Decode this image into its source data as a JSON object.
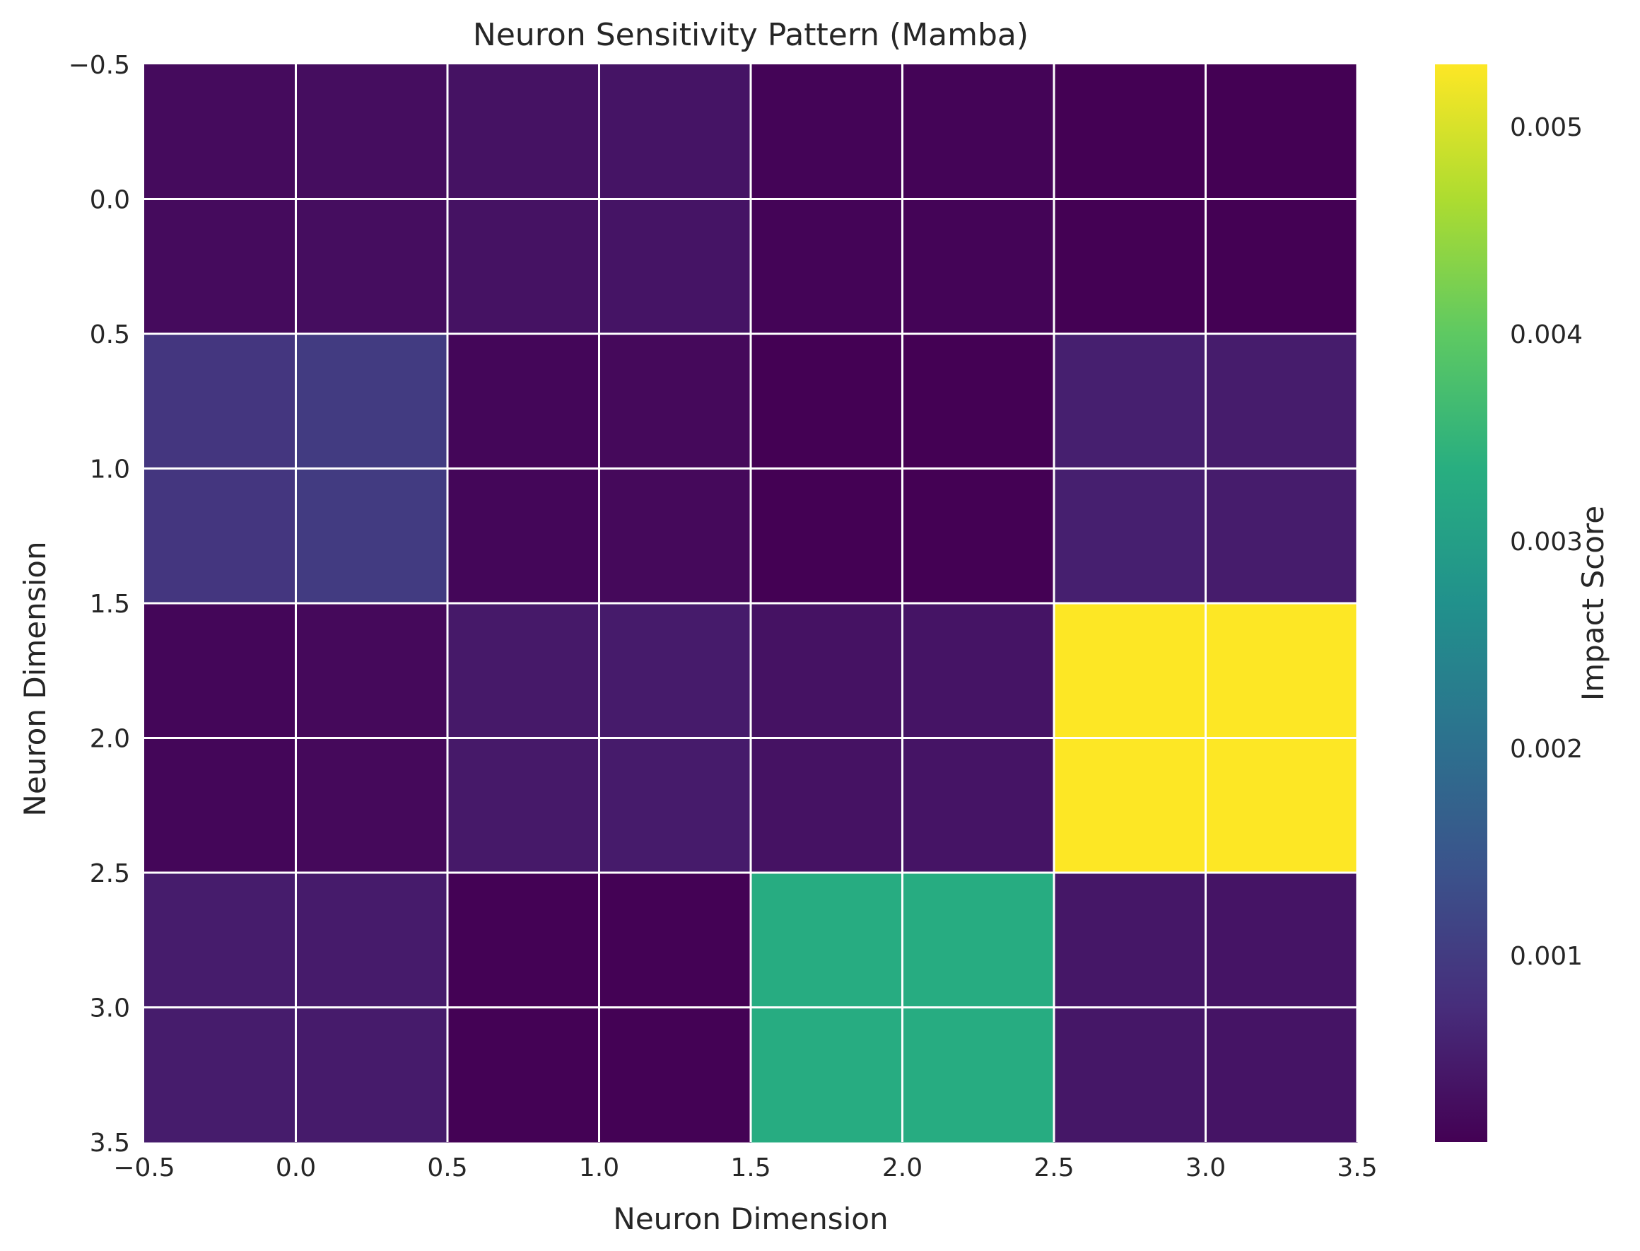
{
  "chart_data": {
    "type": "heatmap",
    "title": "Neuron Sensitivity Pattern (Mamba)",
    "xlabel": "Neuron Dimension",
    "ylabel": "Neuron Dimension",
    "xlim": [
      -0.5,
      3.5
    ],
    "ylim": [
      3.5,
      -0.5
    ],
    "x_ticks": [
      "−0.5",
      "0.0",
      "0.5",
      "1.0",
      "1.5",
      "2.0",
      "2.5",
      "3.0",
      "3.5"
    ],
    "y_ticks": [
      "−0.5",
      "0.0",
      "0.5",
      "1.0",
      "1.5",
      "2.0",
      "2.5",
      "3.0",
      "3.5"
    ],
    "colormap": "viridis",
    "color_range": [
      0.0001,
      0.0053
    ],
    "colorbar": {
      "label": "Impact Score",
      "ticks": [
        0.001,
        0.002,
        0.003,
        0.004,
        0.005
      ],
      "tick_labels": [
        "0.001",
        "0.002",
        "0.003",
        "0.004",
        "0.005"
      ]
    },
    "grid": "white lines between cells",
    "values": [
      [
        0.00025,
        0.00028,
        0.00035,
        0.00038,
        0.00015,
        0.00015,
        0.0001,
        0.0001
      ],
      [
        0.00025,
        0.00028,
        0.00035,
        0.00038,
        0.00015,
        0.00015,
        0.0001,
        0.0001
      ],
      [
        0.0009,
        0.001,
        0.00018,
        0.00022,
        0.0001,
        0.0001,
        0.00055,
        0.0005
      ],
      [
        0.0009,
        0.001,
        0.00018,
        0.00022,
        0.0001,
        0.0001,
        0.00055,
        0.0005
      ],
      [
        0.00018,
        0.00022,
        0.00045,
        0.00048,
        0.00035,
        0.00038,
        0.0053,
        0.0053
      ],
      [
        0.00018,
        0.00022,
        0.00045,
        0.00048,
        0.00035,
        0.00038,
        0.0053,
        0.0053
      ],
      [
        0.0005,
        0.00048,
        0.00012,
        0.00012,
        0.0033,
        0.0033,
        0.00042,
        0.00038
      ],
      [
        0.0005,
        0.00048,
        0.00012,
        0.00012,
        0.0033,
        0.0033,
        0.00042,
        0.00038
      ]
    ]
  }
}
